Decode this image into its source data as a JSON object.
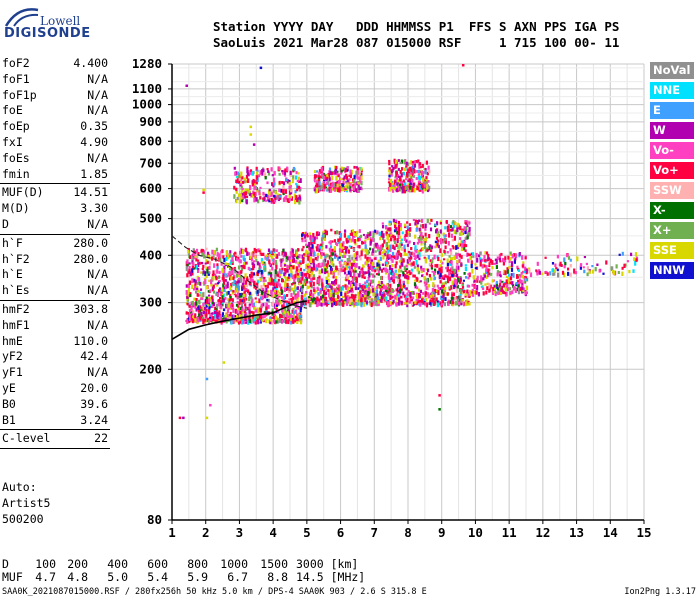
{
  "logo": {
    "line1": "Lowell",
    "line2": "DIGISONDE"
  },
  "header": {
    "labels": "Station YYYY DAY   DDD HHMMSS P1  FFS S AXN PPS IGA PS",
    "values": "SaoLuis 2021 Mar28 087 015000 RSF     1 715 100 00- 11"
  },
  "params": {
    "group1": [
      {
        "k": "foF2",
        "v": "4.400"
      },
      {
        "k": "foF1",
        "v": "N/A"
      },
      {
        "k": "foF1p",
        "v": "N/A"
      },
      {
        "k": "foE",
        "v": "N/A"
      },
      {
        "k": "foEp",
        "v": "0.35"
      },
      {
        "k": "fxI",
        "v": "4.90"
      },
      {
        "k": "foEs",
        "v": "N/A"
      },
      {
        "k": "fmin",
        "v": "1.85"
      }
    ],
    "group2": [
      {
        "k": "MUF(D)",
        "v": "14.51"
      },
      {
        "k": "M(D)",
        "v": "3.30"
      },
      {
        "k": "D",
        "v": "N/A"
      }
    ],
    "group3": [
      {
        "k": "h`F",
        "v": "280.0"
      },
      {
        "k": "h`F2",
        "v": "280.0"
      },
      {
        "k": "h`E",
        "v": "N/A"
      },
      {
        "k": "h`Es",
        "v": "N/A"
      }
    ],
    "group4": [
      {
        "k": "hmF2",
        "v": "303.8"
      },
      {
        "k": "hmF1",
        "v": "N/A"
      },
      {
        "k": "hmE",
        "v": "110.0"
      },
      {
        "k": "yF2",
        "v": "42.4"
      },
      {
        "k": "yF1",
        "v": "N/A"
      },
      {
        "k": "yE",
        "v": "20.0"
      },
      {
        "k": "B0",
        "v": "39.6"
      },
      {
        "k": "B1",
        "v": "3.24"
      }
    ],
    "group5": [
      {
        "k": "C-level",
        "v": "22"
      }
    ]
  },
  "auto": {
    "line1": "Auto:",
    "line2": "Artist5",
    "line3": "500200"
  },
  "legend": [
    {
      "label": "NoVal",
      "bg": "#909090",
      "fg": "#ffffff"
    },
    {
      "label": "NNE",
      "bg": "#00e0ff",
      "fg": "#ffffff"
    },
    {
      "label": "E",
      "bg": "#40a0ff",
      "fg": "#ffffff"
    },
    {
      "label": "W",
      "bg": "#b000b0",
      "fg": "#ffffff"
    },
    {
      "label": "Vo-",
      "bg": "#ff40c0",
      "fg": "#ffffff"
    },
    {
      "label": "Vo+",
      "bg": "#ff0040",
      "fg": "#ffffff"
    },
    {
      "label": "SSW",
      "bg": "#ffb0b0",
      "fg": "#ffffff"
    },
    {
      "label": "X-",
      "bg": "#007000",
      "fg": "#ffffff"
    },
    {
      "label": "X+",
      "bg": "#70b050",
      "fg": "#ffffff"
    },
    {
      "label": "SSE",
      "bg": "#d8d800",
      "fg": "#ffffff"
    },
    {
      "label": "NNW",
      "bg": "#1010d0",
      "fg": "#ffffff"
    }
  ],
  "muf_table": {
    "d_label": "D",
    "d_values": [
      "100",
      "200",
      "400",
      "600",
      "800",
      "1000",
      "1500",
      "3000 [km]"
    ],
    "muf_label": "MUF",
    "muf_values": [
      "4.7",
      "4.8",
      "5.0",
      "5.4",
      "5.9",
      "6.7",
      "8.8",
      "14.5 [MHz]"
    ]
  },
  "footer": {
    "left": "SAA0K_2021087015000.RSF / 280fx256h 50 kHz 5.0 km / DPS-4 SAA0K 903 / 2.6 S 315.8 E",
    "right": "Ion2Png 1.3.17"
  },
  "chart_data": {
    "type": "scatter",
    "title": "",
    "xlabel": "",
    "ylabel": "",
    "xlim": [
      1,
      15
    ],
    "ylim": [
      80,
      1280
    ],
    "y_scale": "log",
    "x_ticks": [
      "1",
      "2",
      "3",
      "4",
      "5",
      "6",
      "7",
      "8",
      "9",
      "10",
      "11",
      "12",
      "13",
      "14",
      "15"
    ],
    "y_ticks": [
      "80",
      "200",
      "300",
      "400",
      "500",
      "600",
      "700",
      "800",
      "900",
      "1000",
      "1100",
      "1280"
    ],
    "grid": true,
    "legend_placement": "right",
    "dashed_profile": [
      [
        1.0,
        450
      ],
      [
        1.4,
        420
      ],
      [
        1.8,
        400
      ],
      [
        2.3,
        390
      ],
      [
        2.8,
        370
      ],
      [
        3.2,
        345
      ],
      [
        3.7,
        320
      ],
      [
        4.2,
        305
      ],
      [
        4.6,
        295
      ],
      [
        5.0,
        290
      ]
    ],
    "solid_profile": [
      [
        1.0,
        240
      ],
      [
        1.5,
        255
      ],
      [
        2.0,
        262
      ],
      [
        2.5,
        268
      ],
      [
        3.0,
        273
      ],
      [
        3.5,
        278
      ],
      [
        4.0,
        282
      ],
      [
        4.3,
        290
      ],
      [
        4.7,
        300
      ],
      [
        5.0,
        303
      ]
    ],
    "echo_clusters": [
      {
        "x": [
          1.4,
          4.8
        ],
        "y": [
          270,
          420
        ],
        "density": "very high"
      },
      {
        "x": [
          4.8,
          7.2
        ],
        "y": [
          300,
          470
        ],
        "density": "high"
      },
      {
        "x": [
          7.2,
          9.8
        ],
        "y": [
          300,
          500
        ],
        "density": "high"
      },
      {
        "x": [
          9.8,
          11.5
        ],
        "y": [
          320,
          410
        ],
        "density": "medium"
      },
      {
        "x": [
          11.5,
          14.8
        ],
        "y": [
          360,
          410
        ],
        "density": "low"
      },
      {
        "x": [
          2.8,
          4.8
        ],
        "y": [
          560,
          690
        ],
        "density": "medium"
      },
      {
        "x": [
          5.2,
          6.6
        ],
        "y": [
          600,
          690
        ],
        "density": "medium"
      },
      {
        "x": [
          7.4,
          8.6
        ],
        "y": [
          600,
          720
        ],
        "density": "medium"
      }
    ],
    "sparse_points": [
      [
        1.4,
        1130
      ],
      [
        3.6,
        1260
      ],
      [
        9.6,
        1280
      ],
      [
        3.3,
        880
      ],
      [
        3.3,
        840
      ],
      [
        3.4,
        790
      ],
      [
        1.2,
        150
      ],
      [
        1.3,
        150
      ],
      [
        2.0,
        150
      ],
      [
        2.1,
        162
      ],
      [
        2.0,
        190
      ],
      [
        2.5,
        210
      ],
      [
        8.9,
        158
      ],
      [
        8.9,
        172
      ],
      [
        1.9,
        600
      ],
      [
        1.9,
        590
      ]
    ]
  }
}
